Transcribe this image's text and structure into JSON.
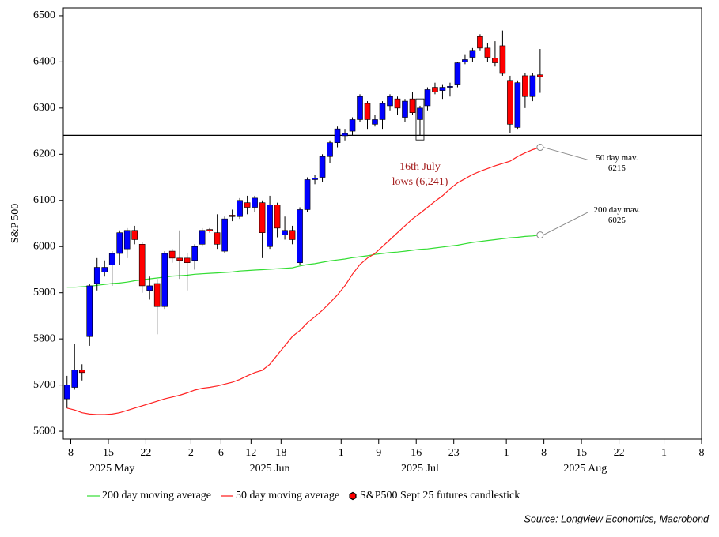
{
  "chart_data": {
    "type": "candlestick",
    "y_label": "S&P 500",
    "source": "Source: Longview Economics, Macrobond",
    "candle_name": "S&P500 Sept 25 futures candlestick",
    "up_color": "#0000ff",
    "down_color": "#ff0000",
    "x": [
      "2025-05-07",
      "2025-05-08",
      "2025-05-09",
      "2025-05-12",
      "2025-05-13",
      "2025-05-14",
      "2025-05-15",
      "2025-05-16",
      "2025-05-19",
      "2025-05-20",
      "2025-05-21",
      "2025-05-22",
      "2025-05-23",
      "2025-05-27",
      "2025-05-28",
      "2025-05-29",
      "2025-05-30",
      "2025-06-02",
      "2025-06-03",
      "2025-06-04",
      "2025-06-05",
      "2025-06-06",
      "2025-06-09",
      "2025-06-10",
      "2025-06-11",
      "2025-06-12",
      "2025-06-13",
      "2025-06-16",
      "2025-06-17",
      "2025-06-18",
      "2025-06-20",
      "2025-06-23",
      "2025-06-24",
      "2025-06-25",
      "2025-06-26",
      "2025-06-27",
      "2025-06-30",
      "2025-07-01",
      "2025-07-02",
      "2025-07-03",
      "2025-07-07",
      "2025-07-08",
      "2025-07-09",
      "2025-07-10",
      "2025-07-11",
      "2025-07-14",
      "2025-07-15",
      "2025-07-16",
      "2025-07-17",
      "2025-07-18",
      "2025-07-21",
      "2025-07-22",
      "2025-07-23",
      "2025-07-24",
      "2025-07-25",
      "2025-07-28",
      "2025-07-29",
      "2025-07-30",
      "2025-07-31",
      "2025-08-01",
      "2025-08-04",
      "2025-08-05",
      "2025-08-06",
      "2025-08-07"
    ],
    "open": [
      5670,
      5695,
      5733,
      5805,
      5920,
      5945,
      5960,
      5985,
      5995,
      6035,
      6005,
      5905,
      5920,
      5870,
      5990,
      5975,
      5975,
      5970,
      6005,
      6037,
      6030,
      5990,
      6068,
      6065,
      6095,
      6085,
      6095,
      6000,
      6090,
      6025,
      6035,
      5965,
      6080,
      6145,
      6150,
      6195,
      6225,
      6240,
      6250,
      6275,
      6310,
      6265,
      6275,
      6305,
      6320,
      6280,
      6320,
      6275,
      6305,
      6345,
      6338,
      6345,
      6350,
      6400,
      6410,
      6455,
      6430,
      6408,
      6435,
      6360,
      6258,
      6370,
      6325,
      6372
    ],
    "high": [
      5720,
      5790,
      5745,
      5920,
      5975,
      5970,
      5990,
      6035,
      6040,
      6045,
      6010,
      5935,
      5930,
      5990,
      5995,
      6035,
      5985,
      6005,
      6040,
      6040,
      6070,
      6065,
      6080,
      6105,
      6110,
      6110,
      6100,
      6110,
      6095,
      6065,
      6045,
      6085,
      6150,
      6155,
      6200,
      6230,
      6260,
      6255,
      6280,
      6330,
      6315,
      6285,
      6315,
      6330,
      6325,
      6320,
      6335,
      6305,
      6345,
      6355,
      6350,
      6355,
      6400,
      6415,
      6430,
      6460,
      6440,
      6445,
      6468,
      6370,
      6360,
      6375,
      6375,
      6428
    ],
    "low": [
      5650,
      5690,
      5710,
      5785,
      5905,
      5935,
      5915,
      5960,
      5975,
      6005,
      5900,
      5885,
      5810,
      5865,
      5965,
      5930,
      5905,
      5950,
      6000,
      6030,
      5995,
      5985,
      6055,
      6060,
      6070,
      6075,
      5975,
      5995,
      6020,
      6015,
      6005,
      5960,
      6075,
      6135,
      6140,
      6180,
      6215,
      6230,
      6240,
      6270,
      6255,
      6260,
      6255,
      6295,
      6285,
      6270,
      6285,
      6241,
      6295,
      6330,
      6320,
      6325,
      6345,
      6395,
      6400,
      6425,
      6400,
      6390,
      6370,
      6245,
      6255,
      6300,
      6315,
      6333
    ],
    "close": [
      5700,
      5733,
      5727,
      5915,
      5955,
      5955,
      5985,
      6030,
      6035,
      6015,
      5915,
      5915,
      5870,
      5985,
      5975,
      5970,
      5965,
      6000,
      6035,
      6034,
      6005,
      6060,
      6065,
      6100,
      6085,
      6105,
      6030,
      6090,
      6040,
      6035,
      6015,
      6080,
      6145,
      6148,
      6195,
      6225,
      6255,
      6245,
      6275,
      6325,
      6275,
      6275,
      6310,
      6325,
      6300,
      6315,
      6290,
      6300,
      6340,
      6335,
      6345,
      6347,
      6398,
      6405,
      6425,
      6430,
      6410,
      6398,
      6375,
      6265,
      6355,
      6325,
      6370,
      6368
    ],
    "lines": [
      {
        "name": "200 day moving average",
        "color": "#33dd33",
        "end_label": "200 day mav.",
        "end_value_label": "6025",
        "values": [
          5912,
          5912,
          5913,
          5914,
          5916,
          5918,
          5920,
          5921,
          5923,
          5926,
          5928,
          5930,
          5932,
          5934,
          5936,
          5937,
          5938,
          5940,
          5941,
          5942,
          5943,
          5944,
          5945,
          5947,
          5948,
          5949,
          5950,
          5951,
          5952,
          5953,
          5954,
          5958,
          5961,
          5963,
          5966,
          5969,
          5971,
          5973,
          5976,
          5978,
          5980,
          5983,
          5985,
          5987,
          5988,
          5990,
          5992,
          5994,
          5995,
          5997,
          5999,
          6001,
          6003,
          6006,
          6009,
          6011,
          6013,
          6015,
          6017,
          6019,
          6020,
          6022,
          6023,
          6025
        ]
      },
      {
        "name": "50 day moving average",
        "color": "#ff2222",
        "end_label": "50 day mav.",
        "end_value_label": "6215",
        "values": [
          5650,
          5646,
          5640,
          5637,
          5636,
          5636,
          5637,
          5640,
          5645,
          5650,
          5655,
          5660,
          5665,
          5670,
          5674,
          5678,
          5683,
          5689,
          5693,
          5695,
          5698,
          5702,
          5706,
          5712,
          5720,
          5727,
          5732,
          5745,
          5765,
          5785,
          5805,
          5818,
          5835,
          5848,
          5862,
          5878,
          5895,
          5915,
          5940,
          5961,
          5975,
          5985,
          6000,
          6015,
          6030,
          6045,
          6060,
          6072,
          6085,
          6098,
          6110,
          6125,
          6138,
          6147,
          6156,
          6163,
          6169,
          6175,
          6180,
          6185,
          6195,
          6203,
          6210,
          6215
        ]
      }
    ],
    "reference_line": 6241,
    "low_annotation": {
      "x": "2025-07-16",
      "lines": [
        "16th July",
        "lows (6,241)"
      ]
    },
    "xlim": [
      "2025-05-07",
      "2025-09-08"
    ],
    "xticks": [
      {
        "value": "2025-05-08",
        "label": "8"
      },
      {
        "value": "2025-05-15",
        "label": "15"
      },
      {
        "value": "2025-05-22",
        "label": "22"
      },
      {
        "value": "2025-06-02",
        "label": "2"
      },
      {
        "value": "2025-06-06",
        "label": "6"
      },
      {
        "value": "2025-06-12",
        "label": "12"
      },
      {
        "value": "2025-06-18",
        "label": "18"
      },
      {
        "value": "2025-07-01",
        "label": "1"
      },
      {
        "value": "2025-07-09",
        "label": "9"
      },
      {
        "value": "2025-07-16",
        "label": "16"
      },
      {
        "value": "2025-07-23",
        "label": "23"
      },
      {
        "value": "2025-08-01",
        "label": "1"
      },
      {
        "value": "2025-08-08",
        "label": "8"
      },
      {
        "value": "2025-08-15",
        "label": "15"
      },
      {
        "value": "2025-08-22",
        "label": "22"
      },
      {
        "value": "2025-09-01",
        "label": "1"
      },
      {
        "value": "2025-09-08",
        "label": "8"
      }
    ],
    "month_labels": [
      {
        "value": "2025-05-15",
        "label": "2025 May"
      },
      {
        "value": "2025-06-16",
        "label": "2025 Jun"
      },
      {
        "value": "2025-07-16",
        "label": "2025 Jul"
      },
      {
        "value": "2025-08-15",
        "label": "2025 Aug"
      }
    ],
    "ylim": [
      5583,
      6517
    ],
    "yticks": [
      5600,
      5700,
      5800,
      5900,
      6000,
      6100,
      6200,
      6300,
      6400,
      6500
    ]
  }
}
